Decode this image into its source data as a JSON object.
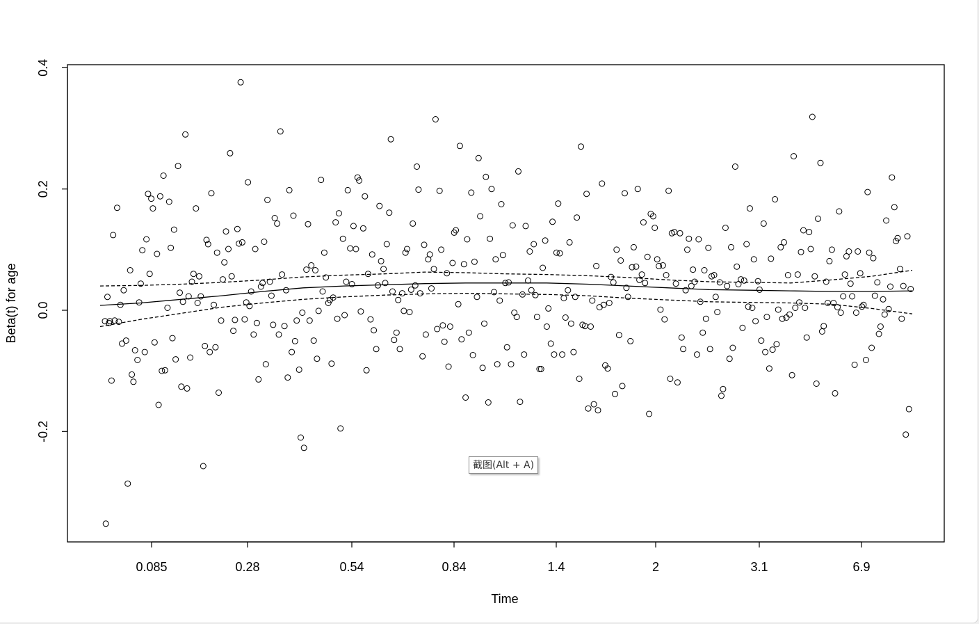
{
  "chart_data": {
    "type": "scatter",
    "xlabel": "Time",
    "ylabel": "Beta(t) for age",
    "x_tick_labels": [
      "0.085",
      "0.28",
      "0.54",
      "0.84",
      "1.4",
      "2",
      "3.1",
      "6.9"
    ],
    "y_ticks": [
      -0.2,
      0.0,
      0.2,
      0.4
    ],
    "y_tick_labels": [
      "-0.2",
      "0.0",
      "0.2",
      "0.4"
    ],
    "x_scale": "ranked (transformed time)",
    "x_rank_range": [
      0,
      1
    ],
    "ylim": [
      -0.38,
      0.405
    ],
    "grid": false,
    "legend": "none",
    "points_x": [
      0.006,
      0.007,
      0.009,
      0.011,
      0.012,
      0.014,
      0.016,
      0.018,
      0.021,
      0.023,
      0.025,
      0.027,
      0.029,
      0.032,
      0.034,
      0.037,
      0.039,
      0.041,
      0.043,
      0.046,
      0.048,
      0.05,
      0.052,
      0.055,
      0.057,
      0.059,
      0.061,
      0.063,
      0.065,
      0.067,
      0.07,
      0.072,
      0.074,
      0.076,
      0.078,
      0.08,
      0.083,
      0.085,
      0.087,
      0.089,
      0.091,
      0.093,
      0.096,
      0.098,
      0.1,
      0.102,
      0.105,
      0.107,
      0.109,
      0.111,
      0.113,
      0.115,
      0.118,
      0.12,
      0.122,
      0.124,
      0.127,
      0.129,
      0.131,
      0.133,
      0.135,
      0.137,
      0.14,
      0.142,
      0.144,
      0.146,
      0.149,
      0.151,
      0.153,
      0.155,
      0.158,
      0.16,
      0.162,
      0.164,
      0.166,
      0.169,
      0.171,
      0.173,
      0.175,
      0.178,
      0.18,
      0.182,
      0.184,
      0.186,
      0.189,
      0.191,
      0.193,
      0.195,
      0.198,
      0.2,
      0.202,
      0.204,
      0.206,
      0.209,
      0.211,
      0.213,
      0.215,
      0.218,
      0.22,
      0.222,
      0.224,
      0.227,
      0.229,
      0.231,
      0.233,
      0.236,
      0.238,
      0.24,
      0.242,
      0.245,
      0.247,
      0.249,
      0.251,
      0.254,
      0.256,
      0.258,
      0.26,
      0.263,
      0.265,
      0.267,
      0.269,
      0.272,
      0.274,
      0.276,
      0.278,
      0.281,
      0.283,
      0.285,
      0.287,
      0.29,
      0.292,
      0.294,
      0.296,
      0.299,
      0.301,
      0.303,
      0.305,
      0.308,
      0.31,
      0.312,
      0.315,
      0.317,
      0.319,
      0.321,
      0.324,
      0.326,
      0.328,
      0.33,
      0.333,
      0.335,
      0.337,
      0.34,
      0.342,
      0.344,
      0.346,
      0.349,
      0.351,
      0.353,
      0.356,
      0.358,
      0.36,
      0.362,
      0.365,
      0.367,
      0.369,
      0.372,
      0.374,
      0.376,
      0.378,
      0.381,
      0.383,
      0.385,
      0.388,
      0.39,
      0.392,
      0.394,
      0.397,
      0.399,
      0.401,
      0.404,
      0.406,
      0.408,
      0.411,
      0.413,
      0.415,
      0.418,
      0.42,
      0.422,
      0.424,
      0.427,
      0.429,
      0.431,
      0.434,
      0.436,
      0.438,
      0.441,
      0.443,
      0.445,
      0.448,
      0.45,
      0.452,
      0.454,
      0.457,
      0.459,
      0.461,
      0.464,
      0.466,
      0.468,
      0.471,
      0.473,
      0.475,
      0.478,
      0.48,
      0.482,
      0.485,
      0.487,
      0.489,
      0.492,
      0.494,
      0.496,
      0.499,
      0.501,
      0.503,
      0.506,
      0.508,
      0.51,
      0.513,
      0.515,
      0.517,
      0.52,
      0.522,
      0.524,
      0.527,
      0.529,
      0.531,
      0.534,
      0.536,
      0.538,
      0.541,
      0.543,
      0.545,
      0.548,
      0.55,
      0.552,
      0.555,
      0.557,
      0.559,
      0.562,
      0.564,
      0.566,
      0.569,
      0.571,
      0.573,
      0.576,
      0.578,
      0.58,
      0.583,
      0.585,
      0.587,
      0.59,
      0.592,
      0.594,
      0.597,
      0.599,
      0.601,
      0.604,
      0.606,
      0.608,
      0.611,
      0.613,
      0.615,
      0.618,
      0.62,
      0.622,
      0.625,
      0.627,
      0.629,
      0.632,
      0.634,
      0.636,
      0.639,
      0.641,
      0.643,
      0.646,
      0.648,
      0.65,
      0.653,
      0.655,
      0.657,
      0.66,
      0.662,
      0.664,
      0.667,
      0.669,
      0.671,
      0.674,
      0.676,
      0.678,
      0.681,
      0.683,
      0.686,
      0.688,
      0.69,
      0.693,
      0.695,
      0.697,
      0.7,
      0.702,
      0.704,
      0.707,
      0.709,
      0.711,
      0.714,
      0.716,
      0.718,
      0.721,
      0.723,
      0.725,
      0.728,
      0.73,
      0.732,
      0.735,
      0.737,
      0.739,
      0.742,
      0.744,
      0.746,
      0.749,
      0.751,
      0.753,
      0.756,
      0.758,
      0.76,
      0.763,
      0.765,
      0.767,
      0.77,
      0.772,
      0.775,
      0.777,
      0.779,
      0.782,
      0.784,
      0.786,
      0.789,
      0.791,
      0.793,
      0.796,
      0.798,
      0.8,
      0.803,
      0.805,
      0.807,
      0.81,
      0.812,
      0.814,
      0.817,
      0.819,
      0.821,
      0.824,
      0.826,
      0.828,
      0.831,
      0.833,
      0.835,
      0.838,
      0.84,
      0.842,
      0.845,
      0.847,
      0.849,
      0.852,
      0.854,
      0.856,
      0.859,
      0.861,
      0.863,
      0.866,
      0.868,
      0.87,
      0.873,
      0.875,
      0.877,
      0.88,
      0.882,
      0.884,
      0.887,
      0.889,
      0.891,
      0.894,
      0.896,
      0.898,
      0.901,
      0.903,
      0.905,
      0.908,
      0.91,
      0.912,
      0.915,
      0.917,
      0.919,
      0.922,
      0.924,
      0.926,
      0.929,
      0.931,
      0.933,
      0.936,
      0.938,
      0.94,
      0.943,
      0.945,
      0.947,
      0.95,
      0.952,
      0.954,
      0.957,
      0.959,
      0.961,
      0.964,
      0.966,
      0.968,
      0.971,
      0.973,
      0.975,
      0.978,
      0.98,
      0.982,
      0.985,
      0.987,
      0.989,
      0.992,
      0.994,
      0.996,
      0.998
    ],
    "points_y": [
      -0.018,
      -0.352,
      0.022,
      -0.021,
      -0.018,
      -0.116,
      0.124,
      -0.017,
      0.169,
      -0.019,
      0.009,
      -0.055,
      0.033,
      -0.05,
      -0.286,
      0.066,
      -0.106,
      -0.118,
      -0.066,
      -0.082,
      0.013,
      0.044,
      0.099,
      -0.069,
      0.117,
      0.192,
      0.06,
      0.184,
      0.168,
      -0.053,
      0.093,
      -0.156,
      0.188,
      -0.1,
      0.222,
      -0.099,
      0.004,
      0.179,
      0.103,
      -0.046,
      0.133,
      -0.081,
      0.238,
      0.029,
      -0.126,
      0.014,
      0.29,
      -0.129,
      0.023,
      -0.078,
      0.047,
      0.06,
      0.168,
      0.012,
      0.056,
      0.023,
      -0.257,
      -0.059,
      0.116,
      0.109,
      -0.069,
      0.193,
      0.009,
      -0.061,
      0.095,
      -0.136,
      -0.017,
      0.051,
      0.079,
      0.13,
      0.101,
      0.259,
      0.056,
      -0.034,
      -0.016,
      0.134,
      0.11,
      0.376,
      0.112,
      -0.015,
      0.013,
      0.211,
      0.007,
      0.031,
      -0.04,
      0.101,
      -0.021,
      -0.114,
      0.039,
      0.045,
      0.113,
      -0.089,
      0.182,
      0.047,
      0.024,
      -0.024,
      0.152,
      0.143,
      -0.04,
      0.295,
      0.059,
      -0.026,
      0.033,
      -0.111,
      0.198,
      -0.069,
      0.156,
      -0.051,
      -0.017,
      -0.098,
      -0.21,
      -0.004,
      -0.227,
      0.067,
      0.142,
      -0.017,
      0.074,
      -0.05,
      0.066,
      -0.08,
      -0.001,
      0.215,
      0.031,
      0.095,
      0.054,
      0.012,
      0.017,
      -0.088,
      0.021,
      0.145,
      -0.014,
      0.16,
      -0.195,
      0.118,
      -0.008,
      0.047,
      0.198,
      0.102,
      0.043,
      0.139,
      0.101,
      0.219,
      0.214,
      -0.002,
      0.135,
      0.188,
      -0.099,
      0.06,
      -0.015,
      0.092,
      -0.033,
      -0.064,
      0.041,
      0.172,
      0.081,
      0.068,
      0.045,
      0.109,
      0.161,
      0.282,
      0.031,
      -0.049,
      -0.037,
      0.017,
      -0.064,
      0.028,
      -0.001,
      0.095,
      0.101,
      -0.003,
      0.034,
      0.143,
      0.041,
      0.237,
      0.199,
      0.028,
      -0.076,
      0.108,
      -0.04,
      0.084,
      0.092,
      0.036,
      0.068,
      0.315,
      -0.031,
      0.197,
      0.1,
      -0.025,
      -0.052,
      0.061,
      -0.093,
      -0.027,
      0.078,
      0.128,
      0.132,
      0.01,
      0.271,
      -0.048,
      0.076,
      -0.144,
      0.117,
      -0.037,
      0.194,
      -0.074,
      0.08,
      0.022,
      0.251,
      0.155,
      -0.095,
      -0.022,
      0.22,
      -0.152,
      0.118,
      0.2,
      0.03,
      0.084,
      -0.089,
      0.016,
      0.175,
      0.091,
      0.045,
      -0.061,
      0.046,
      -0.089,
      0.14,
      -0.004,
      -0.011,
      0.229,
      -0.151,
      0.026,
      -0.073,
      0.139,
      0.049,
      0.097,
      0.033,
      0.109,
      0.025,
      -0.011,
      -0.097,
      -0.097,
      0.07,
      0.115,
      -0.027,
      0.003,
      -0.055,
      0.146,
      -0.073,
      0.095,
      0.176,
      0.094,
      -0.073,
      0.02,
      -0.012,
      0.033,
      0.112,
      -0.022,
      -0.069,
      0.022,
      0.153,
      -0.113,
      0.27,
      -0.024,
      -0.026,
      0.192,
      -0.162,
      -0.027,
      0.016,
      -0.155,
      0.073,
      -0.165,
      0.005,
      0.209,
      0.009,
      -0.091,
      -0.096,
      0.012,
      0.055,
      0.046,
      -0.138,
      0.1,
      -0.041,
      0.082,
      -0.125,
      0.193,
      0.037,
      0.022,
      -0.051,
      0.071,
      0.104,
      0.072,
      0.2,
      0.05,
      0.059,
      0.145,
      0.045,
      0.088,
      -0.171,
      0.159,
      0.155,
      0.136,
      0.084,
      0.073,
      0.001,
      0.074,
      -0.015,
      0.058,
      0.197,
      -0.113,
      0.127,
      0.129,
      0.044,
      -0.119,
      0.127,
      -0.045,
      -0.064,
      0.033,
      0.1,
      0.118,
      0.04,
      0.067,
      0.047,
      -0.073,
      0.117,
      0.014,
      -0.037,
      0.066,
      -0.014,
      0.103,
      -0.064,
      0.056,
      0.058,
      0.022,
      -0.003,
      0.046,
      -0.141,
      -0.13,
      0.136,
      0.04,
      -0.08,
      0.104,
      -0.062,
      0.237,
      0.072,
      0.043,
      0.051,
      -0.029,
      0.049,
      0.109,
      0.006,
      0.168,
      0.004,
      0.084,
      -0.018,
      0.048,
      0.034,
      -0.05,
      0.143,
      -0.069,
      -0.011,
      -0.096,
      0.085,
      -0.065,
      0.183,
      -0.056,
      0.001,
      0.104,
      -0.014,
      0.112,
      -0.012,
      0.058,
      -0.007,
      -0.107,
      0.254,
      0.004,
      0.059,
      0.013,
      0.096,
      0.132,
      0.004,
      -0.045,
      0.129,
      0.101,
      0.319,
      0.056,
      -0.121,
      0.151,
      0.243,
      -0.035,
      -0.026,
      0.047,
      0.012,
      0.081,
      0.1,
      0.012,
      -0.137,
      0.005,
      0.163,
      -0.004,
      0.023,
      0.059,
      0.089,
      0.097,
      0.044,
      0.023,
      -0.09,
      -0.004,
      0.097,
      0.061,
      0.006,
      0.009,
      -0.082,
      0.195,
      0.095,
      -0.062,
      0.086,
      0.024,
      0.046,
      -0.039,
      -0.027,
      0.018,
      -0.007,
      0.148,
      0.002,
      0.039,
      0.219,
      0.17,
      0.114,
      0.119,
      0.068,
      -0.014,
      0.04,
      -0.205,
      0.122,
      -0.163,
      0.035,
      -0.16,
      0.051,
      -0.118,
      0.135,
      -0.148,
      0.12,
      -0.017,
      -0.052,
      -0.163,
      -0.052,
      0.01,
      0.175,
      0.087,
      0.033
    ],
    "fit_curve": {
      "x": [
        0.0,
        0.05,
        0.1,
        0.15,
        0.2,
        0.25,
        0.3,
        0.35,
        0.4,
        0.45,
        0.5,
        0.55,
        0.6,
        0.65,
        0.7,
        0.75,
        0.8,
        0.85,
        0.9,
        0.95,
        1.0
      ],
      "y": [
        0.008,
        0.012,
        0.018,
        0.024,
        0.031,
        0.037,
        0.04,
        0.042,
        0.044,
        0.045,
        0.045,
        0.045,
        0.043,
        0.04,
        0.037,
        0.034,
        0.033,
        0.032,
        0.031,
        0.031,
        0.032
      ]
    },
    "ci_upper": {
      "x": [
        0.0,
        0.05,
        0.1,
        0.15,
        0.2,
        0.25,
        0.3,
        0.35,
        0.4,
        0.45,
        0.5,
        0.55,
        0.6,
        0.65,
        0.7,
        0.75,
        0.8,
        0.85,
        0.9,
        0.95,
        1.0
      ],
      "y": [
        0.04,
        0.041,
        0.043,
        0.046,
        0.05,
        0.055,
        0.058,
        0.06,
        0.063,
        0.062,
        0.06,
        0.059,
        0.057,
        0.054,
        0.05,
        0.047,
        0.046,
        0.045,
        0.05,
        0.056,
        0.066
      ]
    },
    "ci_lower": {
      "x": [
        0.0,
        0.05,
        0.1,
        0.15,
        0.2,
        0.25,
        0.3,
        0.35,
        0.4,
        0.45,
        0.5,
        0.55,
        0.6,
        0.65,
        0.7,
        0.75,
        0.8,
        0.85,
        0.9,
        0.95,
        1.0
      ],
      "y": [
        -0.027,
        -0.015,
        -0.005,
        0.005,
        0.012,
        0.018,
        0.022,
        0.025,
        0.027,
        0.028,
        0.027,
        0.026,
        0.024,
        0.02,
        0.017,
        0.014,
        0.013,
        0.012,
        0.01,
        0.003,
        -0.006
      ]
    },
    "annotation": "截图(Alt + A)"
  }
}
